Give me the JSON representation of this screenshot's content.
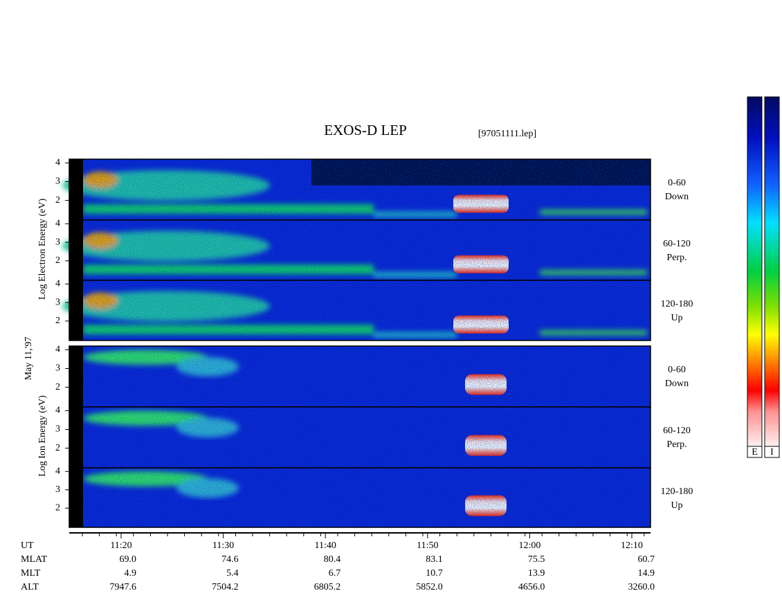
{
  "chart_data": {
    "type": "spectrogram",
    "title": "EXOS-D LEP",
    "file_label": "[97051111.lep]",
    "date_label": "May 11,'97",
    "species_labels": [
      "Log Electron Energy (eV)",
      "Log Ion Energy (eV)"
    ],
    "panels": [
      {
        "species": 0,
        "angle": "0-60",
        "direction": "Down"
      },
      {
        "species": 0,
        "angle": "60-120",
        "direction": "Perp."
      },
      {
        "species": 0,
        "angle": "120-180",
        "direction": "Up"
      },
      {
        "species": 1,
        "angle": "0-60",
        "direction": "Down"
      },
      {
        "species": 1,
        "angle": "60-120",
        "direction": "Perp."
      },
      {
        "species": 1,
        "angle": "120-180",
        "direction": "Up"
      }
    ],
    "ylim": [
      0.95,
      4.2
    ],
    "yticks": [
      2,
      3,
      4
    ],
    "ephemeris": [
      {
        "name": "UT",
        "values": [
          "11:20",
          "11:30",
          "11:40",
          "11:50",
          "12:00",
          "12:10"
        ]
      },
      {
        "name": "MLAT",
        "values": [
          "69.0",
          "74.6",
          "80.4",
          "83.1",
          "75.5",
          "60.7"
        ]
      },
      {
        "name": "MLT",
        "values": [
          "4.9",
          "5.4",
          "6.7",
          "10.7",
          "13.9",
          "14.9"
        ]
      },
      {
        "name": "ALT",
        "values": [
          "7947.6",
          "7504.2",
          "6805.2",
          "5852.0",
          "4656.0",
          "3260.0"
        ]
      }
    ],
    "colorbar_labels": [
      "E",
      "I"
    ]
  }
}
